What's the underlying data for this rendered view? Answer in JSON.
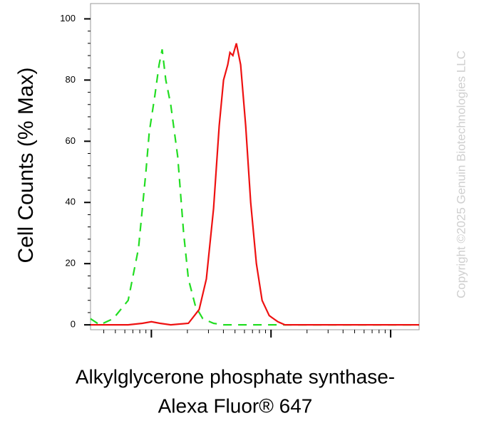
{
  "chart_data": {
    "type": "line",
    "ylabel": "Cell Counts (% Max)",
    "xlabel": [
      "Alkylglycerone phosphate synthase-",
      "Alexa Fluor® 647"
    ],
    "watermark": "Copyright ©2025 Genuin Biotechnologies LLC",
    "xscale": "log",
    "xlim": [
      31,
      17300
    ],
    "ylim": [
      -1.6,
      105
    ],
    "yticks": [
      0,
      20,
      40,
      60,
      80,
      100
    ],
    "series": [
      {
        "color": "#22dd22",
        "dash": true,
        "x": [
          31,
          37,
          48,
          64,
          78,
          90,
          96,
          107,
          116,
          123,
          132,
          145,
          166,
          186,
          204,
          234,
          269,
          331,
          401,
          17300
        ],
        "values": [
          2,
          0,
          2,
          8,
          25,
          50,
          63,
          75,
          85,
          90,
          80,
          72,
          55,
          30,
          15,
          6,
          2,
          0.5,
          0,
          0
        ]
      },
      {
        "color": "#ee1111",
        "dash": false,
        "x": [
          31,
          64,
          84,
          100,
          118,
          145,
          204,
          251,
          288,
          331,
          369,
          401,
          435,
          454,
          480,
          513,
          557,
          614,
          676,
          755,
          842,
          966,
          1140,
          1306,
          17300
        ],
        "values": [
          0,
          0,
          0.5,
          1,
          0.5,
          0,
          0.5,
          5,
          15,
          38,
          65,
          80,
          85,
          89,
          88,
          92,
          85,
          65,
          40,
          20,
          8,
          3,
          1,
          0,
          0
        ]
      }
    ]
  }
}
